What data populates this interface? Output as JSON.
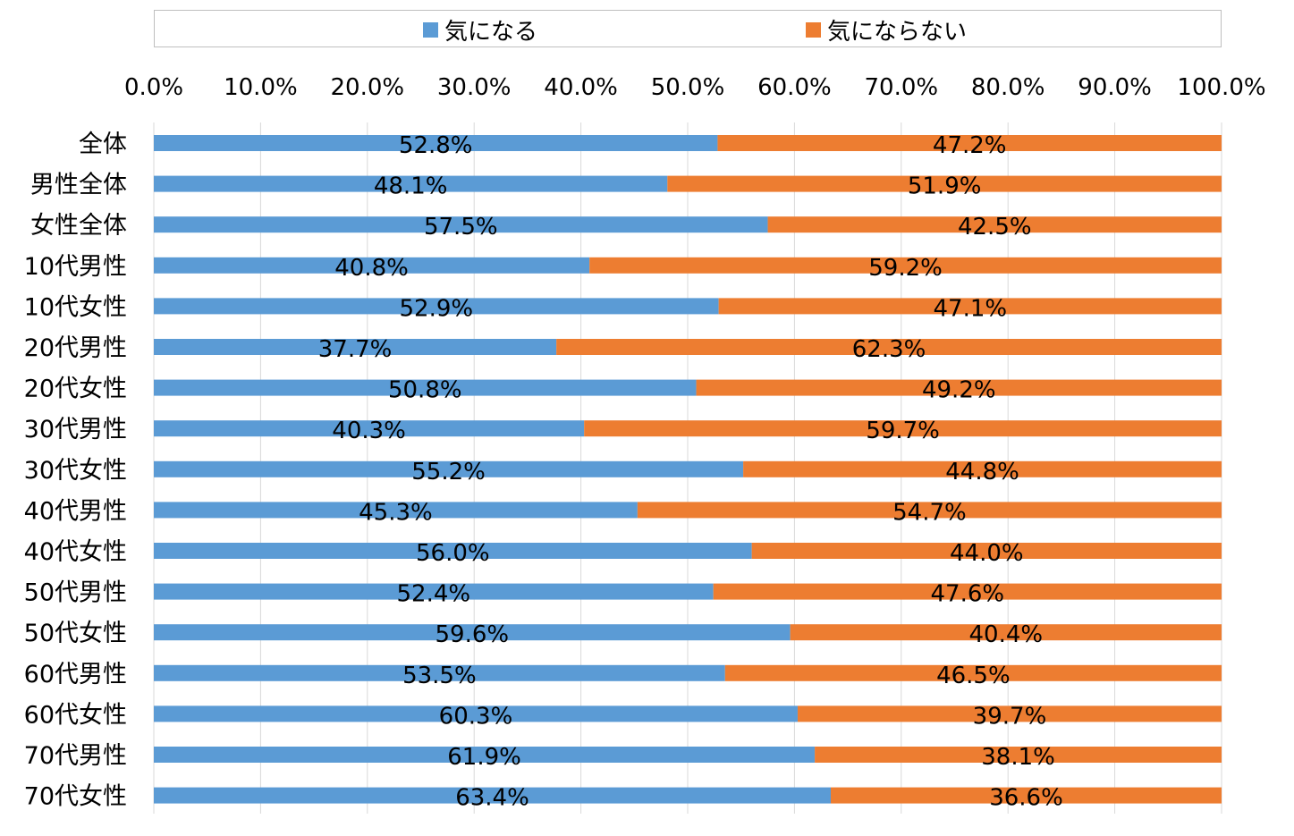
{
  "legend": {
    "items": [
      {
        "label": "気になる",
        "color": "#5b9bd5"
      },
      {
        "label": "気にならない",
        "color": "#ed7d31"
      }
    ]
  },
  "chart_data": {
    "type": "bar",
    "orientation": "horizontal",
    "stacked": true,
    "xlim": [
      0,
      100
    ],
    "xticks": [
      "0.0%",
      "10.0%",
      "20.0%",
      "30.0%",
      "40.0%",
      "50.0%",
      "60.0%",
      "70.0%",
      "80.0%",
      "90.0%",
      "100.0%"
    ],
    "legend_position": "top",
    "grid": true,
    "categories": [
      "全体",
      "男性全体",
      "女性全体",
      "10代男性",
      "10代女性",
      "20代男性",
      "20代女性",
      "30代男性",
      "30代女性",
      "40代男性",
      "40代女性",
      "50代男性",
      "50代女性",
      "60代男性",
      "60代女性",
      "70代男性",
      "70代女性"
    ],
    "series": [
      {
        "name": "気になる",
        "color": "#5b9bd5",
        "values": [
          52.8,
          48.1,
          57.5,
          40.8,
          52.9,
          37.7,
          50.8,
          40.3,
          55.2,
          45.3,
          56.0,
          52.4,
          59.6,
          53.5,
          60.3,
          61.9,
          63.4
        ],
        "labels": [
          "52.8%",
          "48.1%",
          "57.5%",
          "40.8%",
          "52.9%",
          "37.7%",
          "50.8%",
          "40.3%",
          "55.2%",
          "45.3%",
          "56.0%",
          "52.4%",
          "59.6%",
          "53.5%",
          "60.3%",
          "61.9%",
          "63.4%"
        ]
      },
      {
        "name": "気にならない",
        "color": "#ed7d31",
        "values": [
          47.2,
          51.9,
          42.5,
          59.2,
          47.1,
          62.3,
          49.2,
          59.7,
          44.8,
          54.7,
          44.0,
          47.6,
          40.4,
          46.5,
          39.7,
          38.1,
          36.6
        ],
        "labels": [
          "47.2%",
          "51.9%",
          "42.5%",
          "59.2%",
          "47.1%",
          "62.3%",
          "49.2%",
          "59.7%",
          "44.8%",
          "54.7%",
          "44.0%",
          "47.6%",
          "40.4%",
          "46.5%",
          "39.7%",
          "38.1%",
          "36.6%"
        ]
      }
    ]
  }
}
